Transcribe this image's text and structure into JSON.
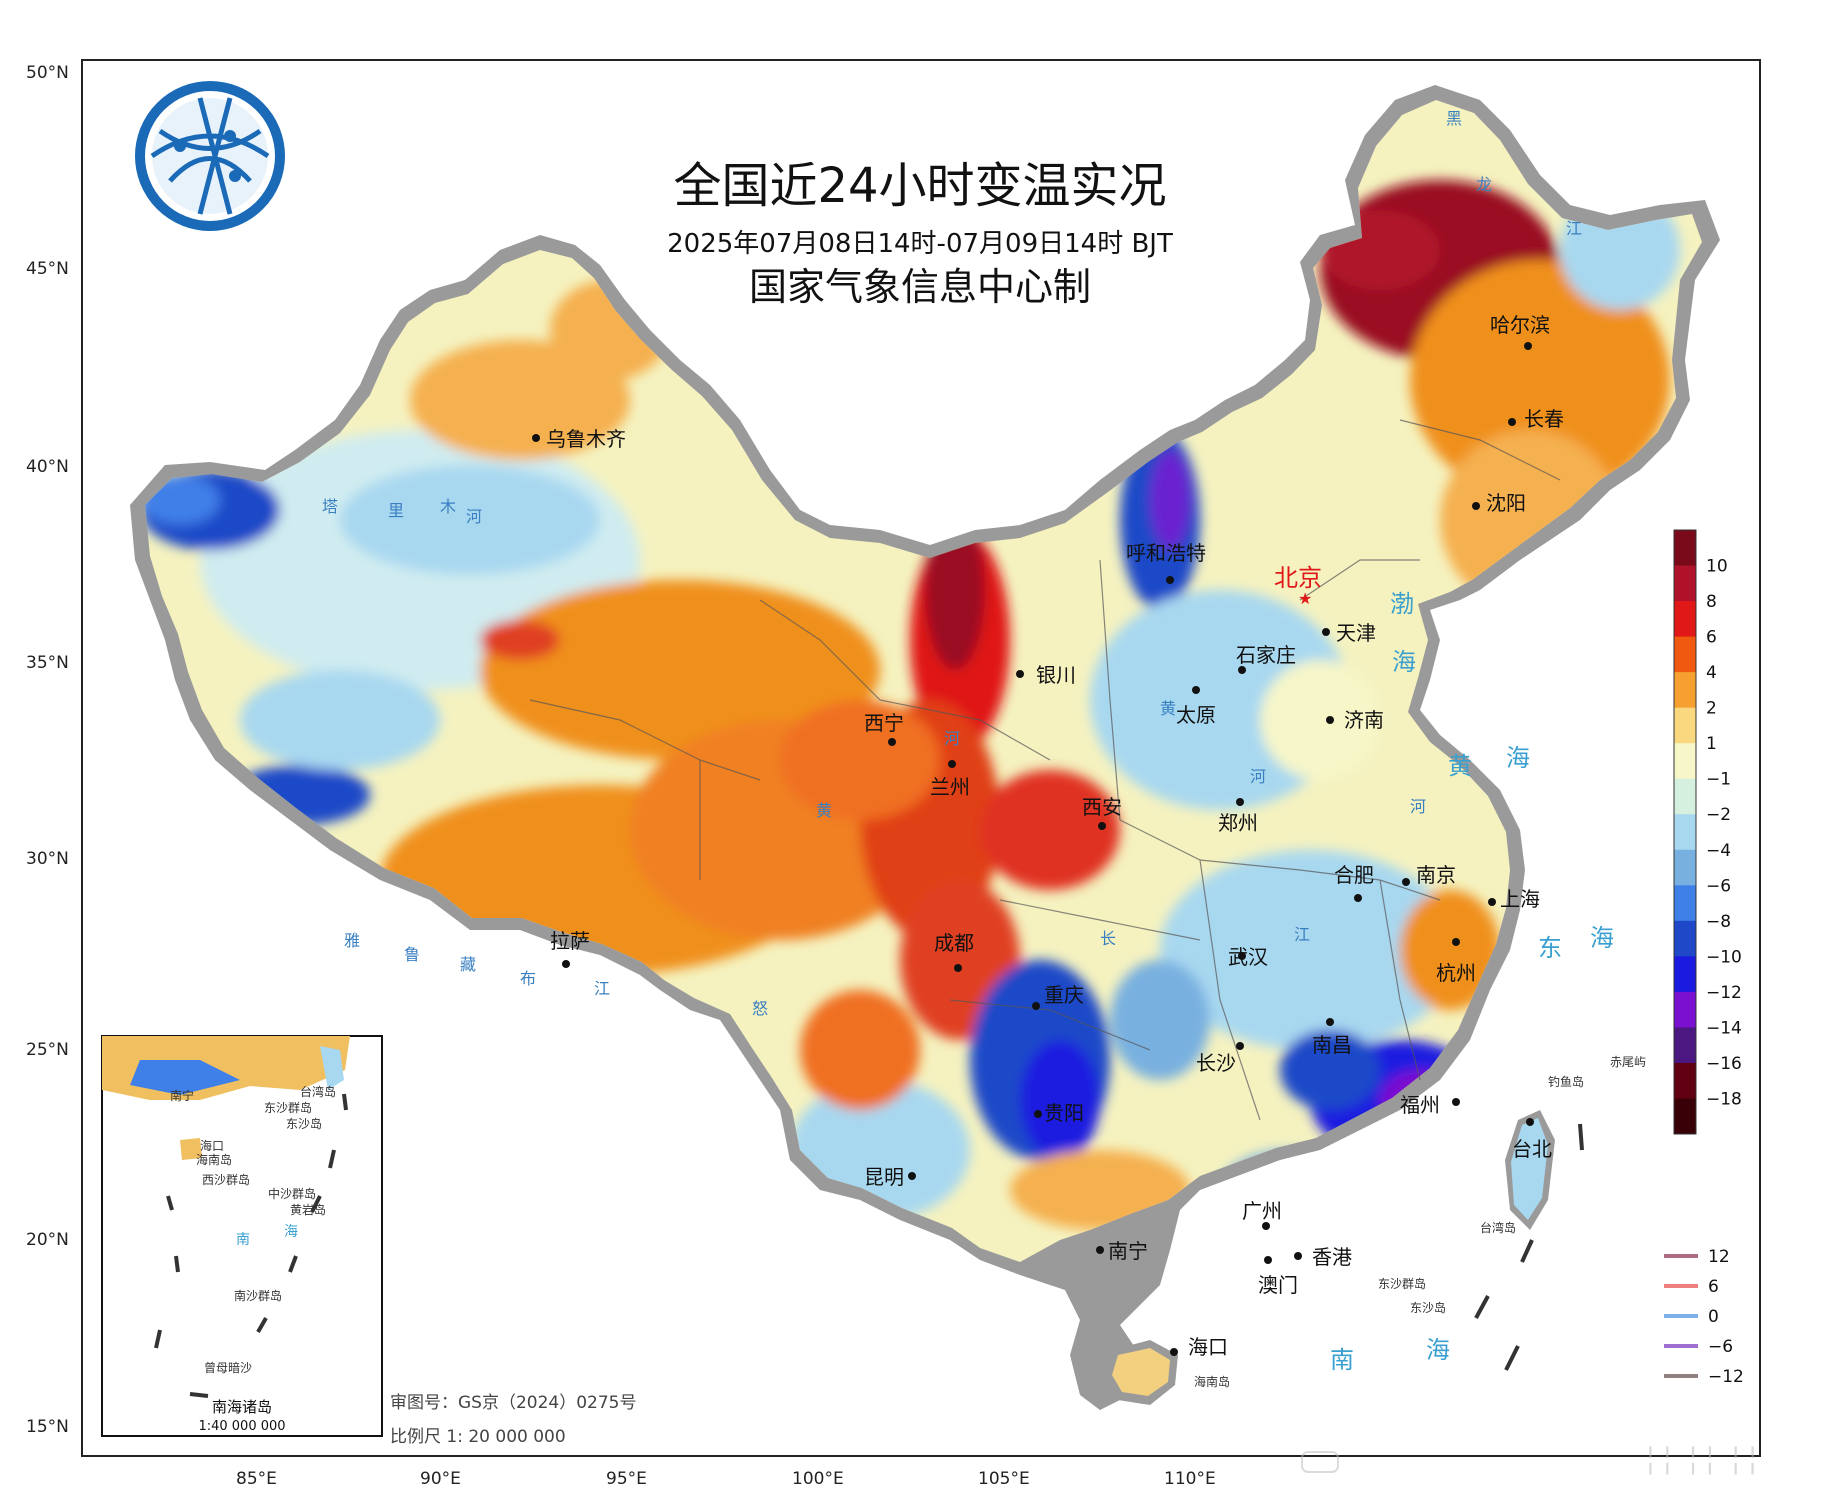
{
  "title": "全国近24小时变温实况",
  "subtitle": "2025年07月08日14时-07月09日14时 BJT",
  "producer": "国家气象信息中心制",
  "lat_labels": [
    "50°N",
    "45°N",
    "40°N",
    "35°N",
    "30°N",
    "25°N",
    "20°N",
    "15°N"
  ],
  "lon_labels": [
    "85°E",
    "90°E",
    "95°E",
    "100°E",
    "105°E",
    "110°E"
  ],
  "colorbar": {
    "labels": [
      "10",
      "8",
      "6",
      "4",
      "2",
      "1",
      "−1",
      "−2",
      "−4",
      "−6",
      "−8",
      "−10",
      "−12",
      "−14",
      "−16",
      "−18"
    ],
    "colors": [
      "#7a0a1a",
      "#b0122a",
      "#e01818",
      "#f05a10",
      "#f5a030",
      "#fad880",
      "#f6f6c8",
      "#d6f0e0",
      "#a8d8f0",
      "#78b0e0",
      "#3f7fe8",
      "#1f48c8",
      "#1a1ae0",
      "#7a10d0",
      "#4a1880",
      "#600010",
      "#3a0008"
    ]
  },
  "cities": [
    {
      "id": "urumqi",
      "name": "乌鲁木齐"
    },
    {
      "id": "hohhot",
      "name": "呼和浩特"
    },
    {
      "id": "beijing",
      "name": "北京"
    },
    {
      "id": "tianjin",
      "name": "天津"
    },
    {
      "id": "shijiazhuang",
      "name": "石家庄"
    },
    {
      "id": "yinchuan",
      "name": "银川"
    },
    {
      "id": "taiyuan",
      "name": "太原"
    },
    {
      "id": "jinan",
      "name": "济南"
    },
    {
      "id": "xining",
      "name": "西宁"
    },
    {
      "id": "lanzhou",
      "name": "兰州"
    },
    {
      "id": "xian",
      "name": "西安"
    },
    {
      "id": "zhengzhou",
      "name": "郑州"
    },
    {
      "id": "hefei",
      "name": "合肥"
    },
    {
      "id": "nanjing",
      "name": "南京"
    },
    {
      "id": "shanghai",
      "name": "上海"
    },
    {
      "id": "hangzhou",
      "name": "杭州"
    },
    {
      "id": "lhasa",
      "name": "拉萨"
    },
    {
      "id": "chengdu",
      "name": "成都"
    },
    {
      "id": "wuhan",
      "name": "武汉"
    },
    {
      "id": "chongqing",
      "name": "重庆"
    },
    {
      "id": "changsha",
      "name": "长沙"
    },
    {
      "id": "nanchang",
      "name": "南昌"
    },
    {
      "id": "guiyang",
      "name": "贵阳"
    },
    {
      "id": "fuzhou",
      "name": "福州"
    },
    {
      "id": "kunming",
      "name": "昆明"
    },
    {
      "id": "guangzhou",
      "name": "广州"
    },
    {
      "id": "nanning",
      "name": "南宁"
    },
    {
      "id": "hongkong",
      "name": "香港"
    },
    {
      "id": "macau",
      "name": "澳门"
    },
    {
      "id": "haikou",
      "name": "海口"
    },
    {
      "id": "taipei",
      "name": "台北"
    },
    {
      "id": "harbin",
      "name": "哈尔滨"
    },
    {
      "id": "changchun",
      "name": "长春"
    },
    {
      "id": "shenyang",
      "name": "沈阳"
    }
  ],
  "seas": {
    "bohai_1": "渤",
    "bohai_2": "海",
    "huanghai_1": "黄",
    "huanghai_2": "海",
    "donghai_1": "东",
    "donghai_2": "海",
    "nanhai_1": "南",
    "nanhai_2": "海"
  },
  "rivers": {
    "tarim_1": "塔",
    "tarim_2": "里",
    "tarim_3": "木",
    "tarim_4": "河",
    "yellow_1": "黄",
    "yellow_2": "河",
    "yellow_3": "黄",
    "yellow_4": "河",
    "yellow_5": "河",
    "yarlung_1": "雅",
    "yarlung_2": "鲁",
    "yarlung_3": "藏",
    "yarlung_4": "布",
    "yarlung_5": "江",
    "yangtze_1": "长",
    "yangtze_2": "江",
    "nujiang": "怒",
    "amur_1": "黑",
    "amur_2": "龙",
    "amur_3": "江"
  },
  "islands": {
    "taiwan": "台湾岛",
    "hainan": "海南岛",
    "dongsha_qundao": "东沙群岛",
    "dongsha_dao": "东沙岛",
    "diaoyu": "钓鱼岛",
    "chiwei": "赤尾屿"
  },
  "inset": {
    "title": "南海诸岛",
    "scale": "1:40 000 000",
    "labels": [
      "南宁",
      "海口",
      "海南岛",
      "台湾岛",
      "东沙群岛",
      "东沙岛",
      "西沙群岛",
      "中沙群岛",
      "黄岩岛",
      "南",
      "海",
      "南沙群岛",
      "曾母暗沙"
    ]
  },
  "line_legend": {
    "items": [
      {
        "label": "12",
        "color": "#b06a80"
      },
      {
        "label": "6",
        "color": "#f08080"
      },
      {
        "label": "0",
        "color": "#7fb0e8"
      },
      {
        "label": "−6",
        "color": "#a070d0"
      },
      {
        "label": "−12",
        "color": "#908080"
      }
    ]
  },
  "footer": {
    "approval": "审图号：GS京（2024）0275号",
    "scale": "比例尺 1: 20 000 000"
  }
}
